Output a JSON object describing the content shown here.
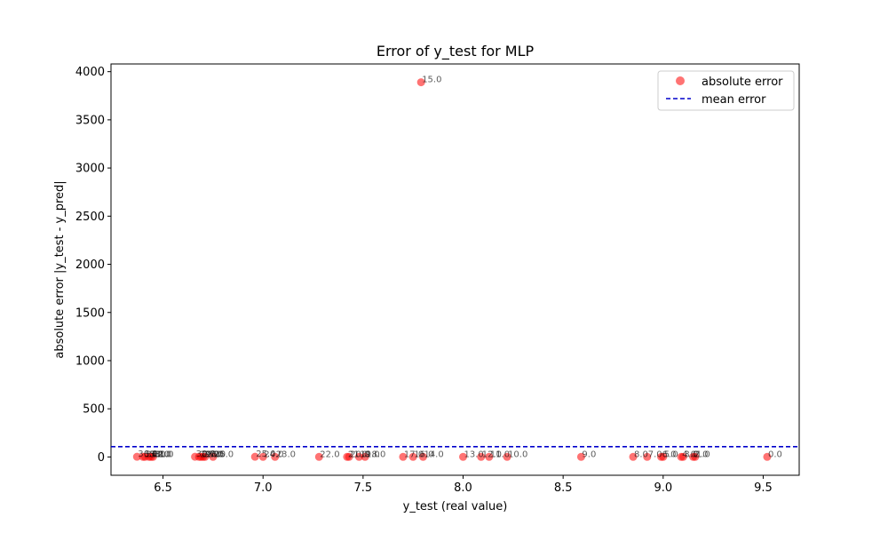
{
  "chart_data": {
    "type": "scatter",
    "title": "Error of y_test for MLP",
    "xlabel": "y_test (real value)",
    "ylabel": "absolute error |y_test - y_pred|",
    "xlim": [
      6.24,
      9.68
    ],
    "ylim": [
      -190,
      4080
    ],
    "xticks": [
      6.5,
      7.0,
      7.5,
      8.0,
      8.5,
      9.0,
      9.5
    ],
    "xtick_labels": [
      "6.5",
      "7.0",
      "7.5",
      "8.0",
      "8.5",
      "9.0",
      "9.5"
    ],
    "yticks": [
      0,
      500,
      1000,
      1500,
      2000,
      2500,
      3000,
      3500,
      4000
    ],
    "ytick_labels": [
      "0",
      "500",
      "1000",
      "1500",
      "2000",
      "2500",
      "3000",
      "3500",
      "4000"
    ],
    "grid": false,
    "legend_position": "top-right",
    "series": [
      {
        "name": "absolute error",
        "kind": "scatter",
        "color": "#ff0000",
        "alpha": 0.55,
        "points": [
          {
            "x": 6.37,
            "y": 2,
            "label": "36.0"
          },
          {
            "x": 6.4,
            "y": 1,
            "label": "35.0"
          },
          {
            "x": 6.41,
            "y": 1,
            "label": "34.0"
          },
          {
            "x": 6.43,
            "y": 1,
            "label": "33.0"
          },
          {
            "x": 6.44,
            "y": 1,
            "label": "32.0"
          },
          {
            "x": 6.45,
            "y": 1,
            "label": "31.0"
          },
          {
            "x": 6.66,
            "y": 2,
            "label": "30.0"
          },
          {
            "x": 6.68,
            "y": 1,
            "label": "29.0"
          },
          {
            "x": 6.69,
            "y": 1,
            "label": "28.0"
          },
          {
            "x": 6.7,
            "y": 1,
            "label": "27.0"
          },
          {
            "x": 6.71,
            "y": 1,
            "label": "26.0"
          },
          {
            "x": 6.75,
            "y": 1,
            "label": "25.0"
          },
          {
            "x": 6.96,
            "y": 2,
            "label": "25.0"
          },
          {
            "x": 7.0,
            "y": 1,
            "label": "24.0"
          },
          {
            "x": 7.06,
            "y": 1,
            "label": "23.0"
          },
          {
            "x": 7.28,
            "y": 1,
            "label": "22.0"
          },
          {
            "x": 7.42,
            "y": 1,
            "label": "21.0"
          },
          {
            "x": 7.43,
            "y": 1,
            "label": "20.0"
          },
          {
            "x": 7.48,
            "y": 1,
            "label": "19.0"
          },
          {
            "x": 7.51,
            "y": 1,
            "label": "18.0"
          },
          {
            "x": 7.7,
            "y": 1,
            "label": "17.0"
          },
          {
            "x": 7.75,
            "y": 1,
            "label": "16.0"
          },
          {
            "x": 7.79,
            "y": 3890,
            "label": "15.0"
          },
          {
            "x": 7.8,
            "y": 1,
            "label": "14.0"
          },
          {
            "x": 8.0,
            "y": 1,
            "label": "13.0"
          },
          {
            "x": 8.09,
            "y": 1,
            "label": "12.0"
          },
          {
            "x": 8.13,
            "y": 1,
            "label": "11.0"
          },
          {
            "x": 8.22,
            "y": 1,
            "label": "10.0"
          },
          {
            "x": 8.59,
            "y": 1,
            "label": "9.0"
          },
          {
            "x": 8.85,
            "y": 1,
            "label": "8.0"
          },
          {
            "x": 8.92,
            "y": 1,
            "label": "7.0"
          },
          {
            "x": 8.99,
            "y": 1,
            "label": "6.0"
          },
          {
            "x": 9.0,
            "y": 1,
            "label": "5.0"
          },
          {
            "x": 9.09,
            "y": 1,
            "label": "4.0"
          },
          {
            "x": 9.1,
            "y": 1,
            "label": "3.0"
          },
          {
            "x": 9.15,
            "y": 1,
            "label": "2.0"
          },
          {
            "x": 9.16,
            "y": 1,
            "label": "1.0"
          },
          {
            "x": 9.52,
            "y": 1,
            "label": "0.0"
          }
        ]
      },
      {
        "name": "mean error",
        "kind": "hline",
        "color": "#0000cc",
        "linestyle": "dashed",
        "y": 107
      }
    ]
  }
}
